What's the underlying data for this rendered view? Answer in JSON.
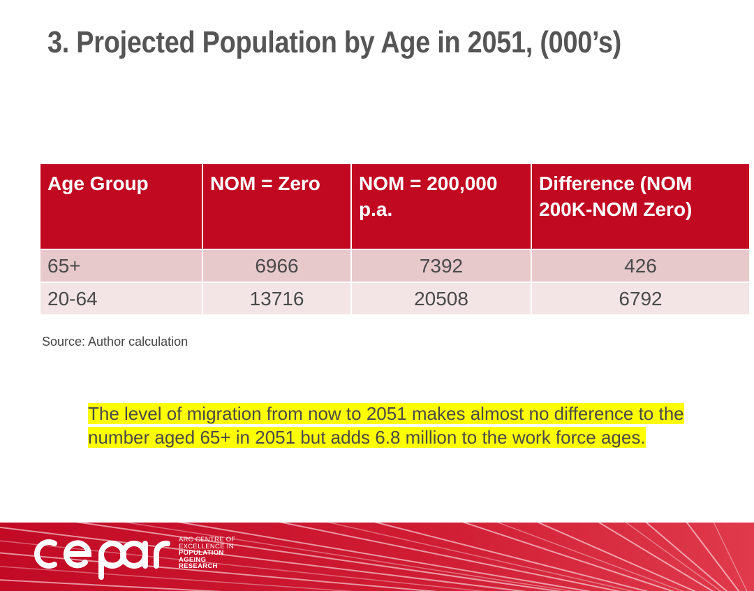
{
  "slide": {
    "title": "3. Projected Population by Age in 2051, (000’s)",
    "source": "Source: Author calculation",
    "note": "The level of migration from now to 2051 makes almost no difference to the number aged 65+ in 2051 but adds 6.8 million to the work force ages."
  },
  "table": {
    "headers": [
      "Age Group",
      "NOM = Zero",
      "NOM = 200,000 p.a.",
      "Difference (NOM 200K-NOM Zero)"
    ],
    "rows": [
      [
        "65+",
        "6966",
        "7392",
        "426"
      ],
      [
        "20-64",
        "13716",
        "20508",
        "6792"
      ]
    ]
  },
  "logo": {
    "wordmark": "cepar",
    "line1": "ARC CENTRE OF",
    "line2": "EXCELLENCE IN",
    "line3": "POPULATION",
    "line4": "AGEING",
    "line5": "RESEARCH"
  },
  "colors": {
    "header_bg": "#c10a22",
    "row1_bg": "#e8c9cb",
    "row2_bg": "#f3e5e6",
    "title": "#555555",
    "highlight": "#ffff00"
  }
}
